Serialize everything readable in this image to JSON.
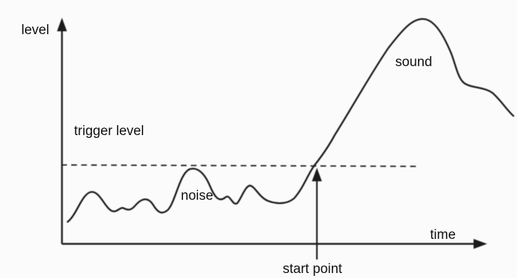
{
  "labels": {
    "y_axis": "level",
    "x_axis": "time",
    "sound": "sound",
    "trigger_level": "trigger level",
    "noise": "noise",
    "start_point": "start point"
  }
}
